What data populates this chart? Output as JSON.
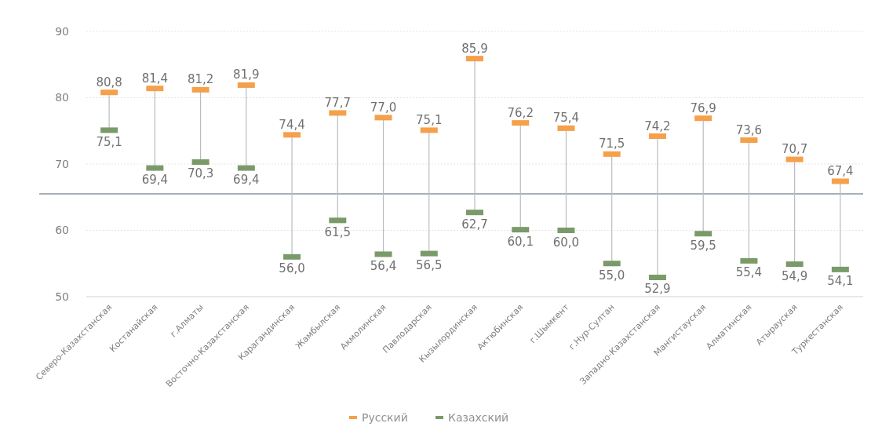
{
  "chart_data": {
    "type": "scatter",
    "categories": [
      "Северо-Казахстанская",
      "Костанайская",
      "г.Алматы",
      "Восточно-Казахстанская",
      "Карагандинская",
      "Жамбылская",
      "Акмолинская",
      "Павлодарская",
      "Кызылординская",
      "Актюбинская",
      "г.Шымкент",
      "г.Нур-Султан",
      "Западно-Казахстанская",
      "Мангистауская",
      "Алматинская",
      "Атырауская",
      "Туркестанская"
    ],
    "series": [
      {
        "name": "Русский",
        "color": "#f5a04a",
        "values": [
          80.8,
          81.4,
          81.2,
          81.9,
          74.4,
          77.7,
          77.0,
          75.1,
          85.9,
          76.2,
          75.4,
          71.5,
          74.2,
          76.9,
          73.6,
          70.7,
          67.4
        ],
        "value_labels": [
          "80,8",
          "81,4",
          "81,2",
          "81,9",
          "74,4",
          "77,7",
          "77,0",
          "75,1",
          "85,9",
          "76,2",
          "75,4",
          "71,5",
          "74,2",
          "76,9",
          "73,6",
          "70,7",
          "67,4"
        ]
      },
      {
        "name": "Казахский",
        "color": "#7a9a6a",
        "values": [
          75.1,
          69.4,
          70.3,
          69.4,
          56.0,
          61.5,
          56.4,
          56.5,
          62.7,
          60.1,
          60.0,
          55.0,
          52.9,
          59.5,
          55.4,
          54.9,
          54.1
        ],
        "value_labels": [
          "75,1",
          "69,4",
          "70,3",
          "69,4",
          "56,0",
          "61,5",
          "56,4",
          "56,5",
          "62,7",
          "60,1",
          "60,0",
          "55,0",
          "52,9",
          "59,5",
          "55,4",
          "54,9",
          "54,1"
        ]
      }
    ],
    "ylim": [
      50,
      90
    ],
    "yticks": [
      50,
      60,
      70,
      80,
      90
    ],
    "grid": "y",
    "legend": "bottom",
    "ref_lines": [
      {
        "axis": "y",
        "value": 65.5,
        "color": "#8a96a0"
      }
    ]
  }
}
